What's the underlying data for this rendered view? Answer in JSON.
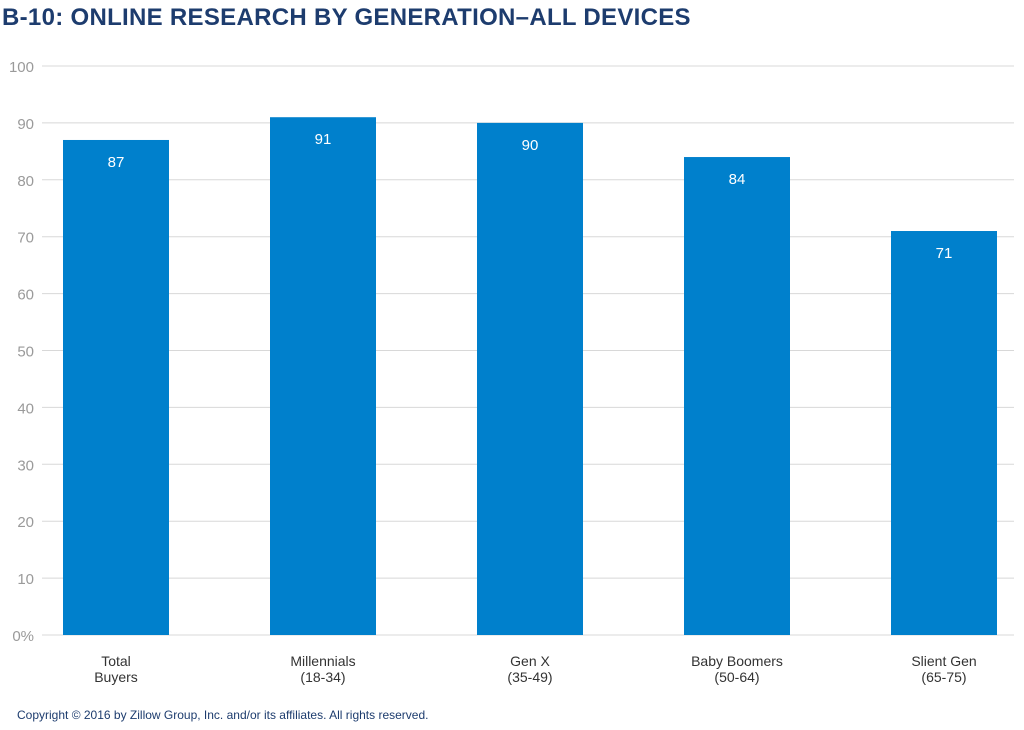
{
  "colors": {
    "bar": "#0080cc",
    "title": "#1d3c6e",
    "axis_text": "#9a9a9a",
    "category_text": "#333333",
    "gridline": "#d8d8d8",
    "value_label": "#ffffff",
    "copyright": "#1d3c6e"
  },
  "chart_data": {
    "type": "bar",
    "title": "B-10: ONLINE RESEARCH BY GENERATION–ALL DEVICES",
    "xlabel": "",
    "ylabel": "",
    "categories": [
      [
        "Total",
        "Buyers"
      ],
      [
        "Millennials",
        "(18-34)"
      ],
      [
        "Gen X",
        "(35-49)"
      ],
      [
        "Baby Boomers",
        "(50-64)"
      ],
      [
        "Slient Gen",
        "(65-75)"
      ]
    ],
    "values": [
      87,
      91,
      90,
      84,
      71
    ],
    "ylim": [
      0,
      100
    ],
    "yticks": [
      0,
      10,
      20,
      30,
      40,
      50,
      60,
      70,
      80,
      90,
      100
    ],
    "ytick_labels": [
      "0%",
      "10",
      "20",
      "30",
      "40",
      "50",
      "60",
      "70",
      "80",
      "90",
      "100"
    ],
    "grid": true,
    "data_labels": true
  },
  "footer": {
    "copyright": "Copyright © 2016 by Zillow Group, Inc. and/or its affiliates. All rights reserved."
  }
}
